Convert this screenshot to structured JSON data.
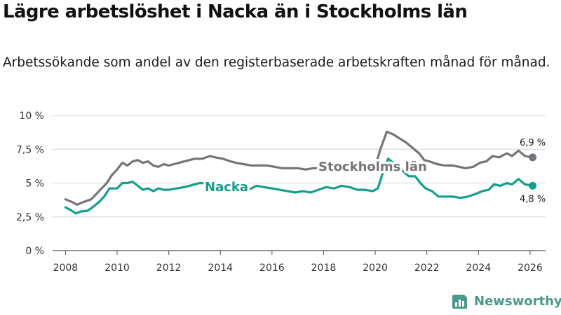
{
  "title": "Lägre arbetslöshet i Nacka än i Stockholms län",
  "subtitle": "Arbetssökande som andel av den registerbaserade arbetskraften månad för månad.",
  "brand": {
    "name": "Newsworthy",
    "icon": "newsworthy-logo-icon"
  },
  "colors": {
    "stockholm": "#76737a",
    "nacka": "#139f8c",
    "grid": "#d6d6d6",
    "axis": "#555555"
  },
  "chart_data": {
    "type": "line",
    "title": "Lägre arbetslöshet i Nacka än i Stockholms län",
    "xlabel": "",
    "ylabel": "",
    "xlim": [
      2007.5,
      2026.6
    ],
    "ylim": [
      0,
      10
    ],
    "y_ticks": [
      0,
      2.5,
      5,
      7.5,
      10
    ],
    "y_tick_labels": [
      "0 %",
      "2,5 %",
      "5 %",
      "7,5 %",
      "10 %"
    ],
    "x_ticks": [
      2008,
      2010,
      2012,
      2014,
      2016,
      2018,
      2020,
      2022,
      2024,
      2026
    ],
    "x_tick_labels": [
      "2008",
      "2010",
      "2012",
      "2014",
      "2016",
      "2018",
      "2020",
      "2022",
      "2024",
      "2026"
    ],
    "grid": "horizontal",
    "series": [
      {
        "name": "Stockholms län",
        "color": "#76737a",
        "end_label": "6,9 %",
        "points": [
          [
            2008.0,
            3.8
          ],
          [
            2008.25,
            3.6
          ],
          [
            2008.45,
            3.4
          ],
          [
            2008.7,
            3.6
          ],
          [
            2009.0,
            3.8
          ],
          [
            2009.2,
            4.2
          ],
          [
            2009.4,
            4.6
          ],
          [
            2009.6,
            5.0
          ],
          [
            2009.8,
            5.6
          ],
          [
            2010.0,
            6.0
          ],
          [
            2010.2,
            6.5
          ],
          [
            2010.4,
            6.3
          ],
          [
            2010.6,
            6.6
          ],
          [
            2010.8,
            6.7
          ],
          [
            2011.0,
            6.5
          ],
          [
            2011.2,
            6.6
          ],
          [
            2011.4,
            6.3
          ],
          [
            2011.6,
            6.2
          ],
          [
            2011.8,
            6.4
          ],
          [
            2012.0,
            6.3
          ],
          [
            2012.2,
            6.4
          ],
          [
            2012.4,
            6.5
          ],
          [
            2012.6,
            6.6
          ],
          [
            2012.8,
            6.7
          ],
          [
            2013.0,
            6.8
          ],
          [
            2013.3,
            6.8
          ],
          [
            2013.6,
            7.0
          ],
          [
            2013.8,
            6.9
          ],
          [
            2014.1,
            6.8
          ],
          [
            2014.4,
            6.6
          ],
          [
            2014.6,
            6.5
          ],
          [
            2014.9,
            6.4
          ],
          [
            2015.2,
            6.3
          ],
          [
            2015.5,
            6.3
          ],
          [
            2015.8,
            6.3
          ],
          [
            2016.1,
            6.2
          ],
          [
            2016.4,
            6.1
          ],
          [
            2016.7,
            6.1
          ],
          [
            2017.0,
            6.1
          ],
          [
            2017.3,
            6.0
          ],
          [
            2017.6,
            6.1
          ],
          [
            2017.9,
            6.1
          ],
          [
            2018.2,
            6.1
          ],
          [
            2018.5,
            6.0
          ],
          [
            2018.8,
            6.0
          ],
          [
            2019.1,
            6.0
          ],
          [
            2019.4,
            6.1
          ],
          [
            2019.7,
            6.0
          ],
          [
            2020.0,
            6.2
          ],
          [
            2020.2,
            7.5
          ],
          [
            2020.45,
            8.8
          ],
          [
            2020.7,
            8.6
          ],
          [
            2020.95,
            8.3
          ],
          [
            2021.2,
            8.0
          ],
          [
            2021.45,
            7.6
          ],
          [
            2021.7,
            7.2
          ],
          [
            2021.9,
            6.7
          ],
          [
            2022.1,
            6.6
          ],
          [
            2022.4,
            6.4
          ],
          [
            2022.7,
            6.3
          ],
          [
            2023.0,
            6.3
          ],
          [
            2023.25,
            6.2
          ],
          [
            2023.5,
            6.1
          ],
          [
            2023.8,
            6.2
          ],
          [
            2024.05,
            6.5
          ],
          [
            2024.3,
            6.6
          ],
          [
            2024.55,
            7.0
          ],
          [
            2024.8,
            6.9
          ],
          [
            2025.1,
            7.2
          ],
          [
            2025.3,
            7.0
          ],
          [
            2025.55,
            7.4
          ],
          [
            2025.8,
            7.0
          ],
          [
            2026.1,
            6.9
          ]
        ]
      },
      {
        "name": "Nacka",
        "color": "#139f8c",
        "end_label": "4,8 %",
        "points": [
          [
            2008.0,
            3.2
          ],
          [
            2008.2,
            3.0
          ],
          [
            2008.4,
            2.75
          ],
          [
            2008.6,
            2.9
          ],
          [
            2008.85,
            2.95
          ],
          [
            2009.05,
            3.2
          ],
          [
            2009.3,
            3.6
          ],
          [
            2009.5,
            4.0
          ],
          [
            2009.7,
            4.6
          ],
          [
            2010.0,
            4.6
          ],
          [
            2010.2,
            5.0
          ],
          [
            2010.4,
            5.0
          ],
          [
            2010.6,
            5.1
          ],
          [
            2010.8,
            4.8
          ],
          [
            2011.0,
            4.5
          ],
          [
            2011.2,
            4.6
          ],
          [
            2011.4,
            4.4
          ],
          [
            2011.6,
            4.6
          ],
          [
            2011.8,
            4.5
          ],
          [
            2012.0,
            4.5
          ],
          [
            2012.3,
            4.6
          ],
          [
            2012.6,
            4.7
          ],
          [
            2012.8,
            4.8
          ],
          [
            2013.0,
            4.9
          ],
          [
            2013.2,
            5.0
          ],
          [
            2014.2,
            4.9
          ],
          [
            2014.5,
            4.7
          ],
          [
            2014.8,
            4.5
          ],
          [
            2015.1,
            4.5
          ],
          [
            2015.4,
            4.8
          ],
          [
            2015.7,
            4.7
          ],
          [
            2016.0,
            4.6
          ],
          [
            2016.3,
            4.5
          ],
          [
            2016.6,
            4.4
          ],
          [
            2016.9,
            4.3
          ],
          [
            2017.2,
            4.4
          ],
          [
            2017.5,
            4.3
          ],
          [
            2017.8,
            4.5
          ],
          [
            2018.1,
            4.7
          ],
          [
            2018.4,
            4.6
          ],
          [
            2018.7,
            4.8
          ],
          [
            2019.0,
            4.7
          ],
          [
            2019.3,
            4.5
          ],
          [
            2019.6,
            4.5
          ],
          [
            2019.9,
            4.4
          ],
          [
            2020.1,
            4.6
          ],
          [
            2020.3,
            5.8
          ],
          [
            2020.5,
            6.8
          ],
          [
            2020.7,
            6.5
          ],
          [
            2021.0,
            6.0
          ],
          [
            2021.3,
            5.5
          ],
          [
            2021.55,
            5.5
          ],
          [
            2021.75,
            5.0
          ],
          [
            2021.95,
            4.6
          ],
          [
            2022.2,
            4.4
          ],
          [
            2022.45,
            4.0
          ],
          [
            2022.7,
            4.0
          ],
          [
            2023.0,
            4.0
          ],
          [
            2023.3,
            3.9
          ],
          [
            2023.6,
            4.0
          ],
          [
            2023.9,
            4.2
          ],
          [
            2024.15,
            4.4
          ],
          [
            2024.4,
            4.5
          ],
          [
            2024.6,
            4.9
          ],
          [
            2024.85,
            4.8
          ],
          [
            2025.1,
            5.0
          ],
          [
            2025.3,
            4.9
          ],
          [
            2025.55,
            5.3
          ],
          [
            2025.8,
            4.9
          ],
          [
            2026.1,
            4.8
          ]
        ]
      }
    ]
  }
}
